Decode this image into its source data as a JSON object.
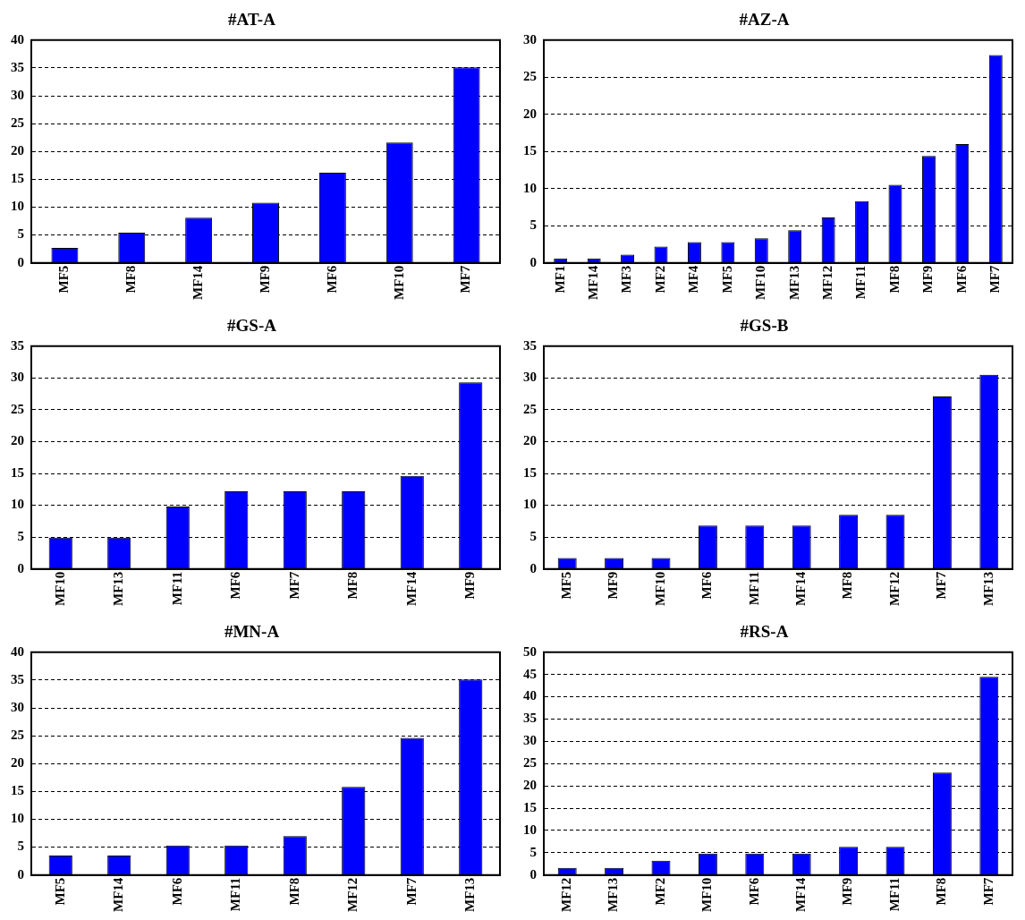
{
  "chart_data": [
    {
      "type": "bar",
      "title": "#AT-A",
      "categories": [
        "MF5",
        "MF8",
        "MF14",
        "MF9",
        "MF6",
        "MF10",
        "MF7"
      ],
      "values": [
        2.7,
        5.4,
        8.1,
        10.8,
        16.2,
        21.6,
        35.1
      ],
      "color": "#0000ff",
      "ylim": [
        0,
        40
      ],
      "yticks": [
        0,
        5,
        10,
        15,
        20,
        25,
        30,
        35,
        40
      ],
      "grid": "y"
    },
    {
      "type": "bar",
      "title": "#AZ-A",
      "categories": [
        "MF1",
        "MF14",
        "MF3",
        "MF2",
        "MF4",
        "MF5",
        "MF10",
        "MF13",
        "MF12",
        "MF11",
        "MF8",
        "MF9",
        "MF6",
        "MF7"
      ],
      "values": [
        0.6,
        0.6,
        1.1,
        2.2,
        2.8,
        2.8,
        3.3,
        4.4,
        6.1,
        8.3,
        10.5,
        14.4,
        16.0,
        28.0
      ],
      "color": "#0000ff",
      "ylim": [
        0,
        30
      ],
      "yticks": [
        0,
        5,
        10,
        15,
        20,
        25,
        30
      ],
      "grid": "y"
    },
    {
      "type": "bar",
      "title": "#GS-A",
      "categories": [
        "MF10",
        "MF13",
        "MF11",
        "MF6",
        "MF7",
        "MF8",
        "MF14",
        "MF9"
      ],
      "values": [
        4.9,
        4.9,
        9.8,
        12.2,
        12.2,
        12.2,
        14.6,
        29.3
      ],
      "color": "#0000ff",
      "ylim": [
        0,
        35
      ],
      "yticks": [
        0,
        5,
        10,
        15,
        20,
        25,
        30,
        35
      ],
      "grid": "y"
    },
    {
      "type": "bar",
      "title": "#GS-B",
      "categories": [
        "MF5",
        "MF9",
        "MF10",
        "MF6",
        "MF11",
        "MF14",
        "MF8",
        "MF12",
        "MF7",
        "MF13"
      ],
      "values": [
        1.7,
        1.7,
        1.7,
        6.8,
        6.8,
        6.8,
        8.5,
        8.5,
        27.1,
        30.5
      ],
      "color": "#0000ff",
      "ylim": [
        0,
        35
      ],
      "yticks": [
        0,
        5,
        10,
        15,
        20,
        25,
        30,
        35
      ],
      "grid": "y"
    },
    {
      "type": "bar",
      "title": "#MN-A",
      "categories": [
        "MF5",
        "MF14",
        "MF6",
        "MF11",
        "MF8",
        "MF12",
        "MF7",
        "MF13"
      ],
      "values": [
        3.5,
        3.5,
        5.3,
        5.3,
        7.0,
        15.8,
        24.6,
        35.1
      ],
      "color": "#0000ff",
      "ylim": [
        0,
        40
      ],
      "yticks": [
        0,
        5,
        10,
        15,
        20,
        25,
        30,
        35,
        40
      ],
      "grid": "y"
    },
    {
      "type": "bar",
      "title": "#RS-A",
      "categories": [
        "MF12",
        "MF13",
        "MF2",
        "MF10",
        "MF6",
        "MF14",
        "MF9",
        "MF11",
        "MF8",
        "MF7"
      ],
      "values": [
        1.6,
        1.6,
        3.2,
        4.8,
        4.8,
        4.8,
        6.3,
        6.3,
        23.0,
        44.5
      ],
      "color": "#0000ff",
      "ylim": [
        0,
        50
      ],
      "yticks": [
        0,
        5,
        10,
        15,
        20,
        25,
        30,
        35,
        40,
        45,
        50
      ],
      "grid": "y"
    }
  ]
}
